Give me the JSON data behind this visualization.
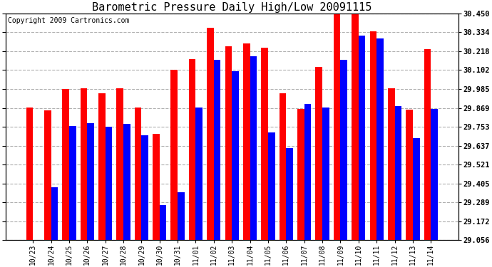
{
  "title": "Barometric Pressure Daily High/Low 20091115",
  "copyright": "Copyright 2009 Cartronics.com",
  "yticks": [
    29.056,
    29.172,
    29.289,
    29.405,
    29.521,
    29.637,
    29.753,
    29.869,
    29.985,
    30.102,
    30.218,
    30.334,
    30.45
  ],
  "ylim": [
    29.056,
    30.45
  ],
  "dates": [
    "10/23",
    "10/24",
    "10/25",
    "10/26",
    "10/27",
    "10/28",
    "10/29",
    "10/30",
    "10/31",
    "11/01",
    "11/02",
    "11/03",
    "11/04",
    "11/05",
    "11/06",
    "11/07",
    "11/08",
    "11/09",
    "11/10",
    "11/11",
    "11/12",
    "11/13",
    "11/14"
  ],
  "highs": [
    29.87,
    29.855,
    29.985,
    29.99,
    29.96,
    29.99,
    29.87,
    29.71,
    30.102,
    30.17,
    30.36,
    30.25,
    30.265,
    30.24,
    29.96,
    29.865,
    30.12,
    30.45,
    30.45,
    30.34,
    29.99,
    29.86,
    30.23
  ],
  "lows": [
    29.056,
    29.38,
    29.76,
    29.775,
    29.755,
    29.77,
    29.7,
    29.27,
    29.35,
    29.87,
    30.165,
    30.095,
    30.185,
    29.718,
    29.62,
    29.895,
    29.87,
    30.165,
    30.315,
    30.295,
    29.88,
    29.685,
    29.862
  ],
  "bar_high_color": "#ff0000",
  "bar_low_color": "#0000ff",
  "bg_color": "#ffffff",
  "grid_color": "#b0b0b0",
  "title_fontsize": 11,
  "copyright_fontsize": 7,
  "bar_width": 0.38,
  "figwidth": 6.9,
  "figheight": 3.75,
  "dpi": 100
}
